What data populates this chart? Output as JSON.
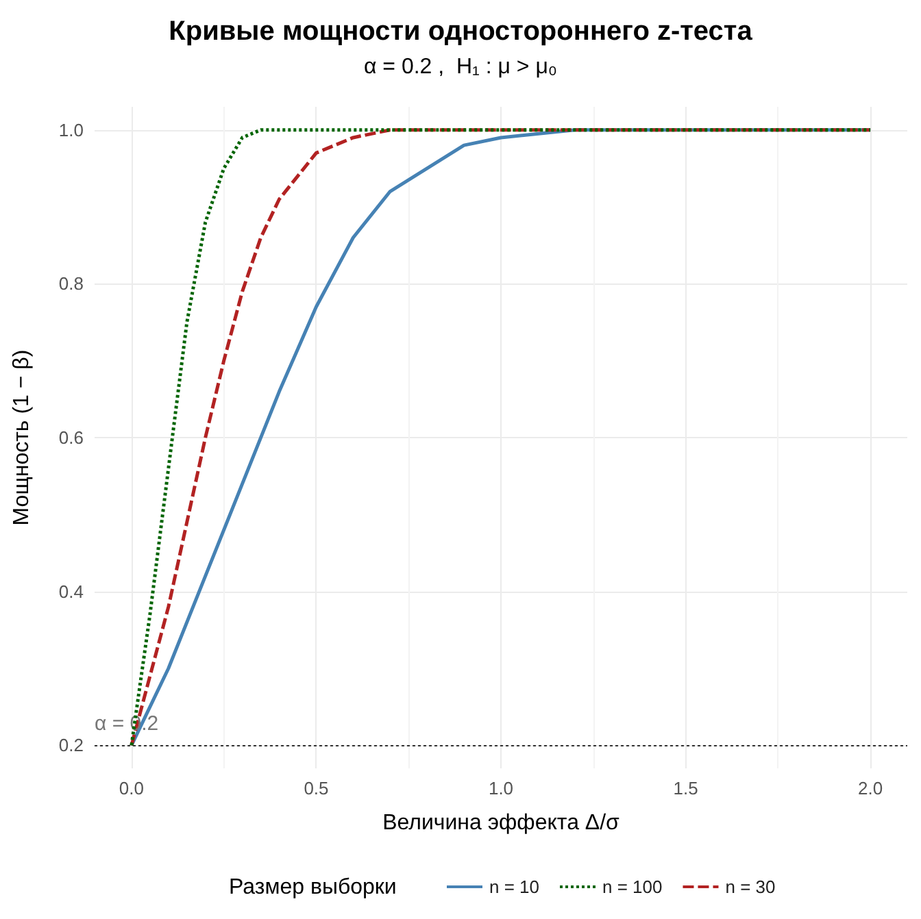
{
  "chart_data": {
    "type": "line",
    "title": "Кривые мощности одностороннего z-теста",
    "subtitle": "α = 0.2 ,  H₁ : μ > μ₀",
    "xlabel": "Величина эффекта Δ/σ",
    "ylabel": "Мощность (1 − β)",
    "legend_title": "Размер выборки",
    "series": [
      {
        "name": "n = 10",
        "color": "#4682b4",
        "line_style": "solid",
        "x": [
          0,
          0.1,
          0.2,
          0.3,
          0.4,
          0.5,
          0.6,
          0.7,
          0.8,
          0.9,
          1.0,
          1.2,
          1.5,
          2.0
        ],
        "values": [
          0.2,
          0.3,
          0.42,
          0.54,
          0.66,
          0.77,
          0.86,
          0.92,
          0.95,
          0.98,
          0.99,
          1.0,
          1.0,
          1.0
        ]
      },
      {
        "name": "n = 100",
        "color": "#006400",
        "line_style": "dotted",
        "x": [
          0,
          0.05,
          0.1,
          0.15,
          0.2,
          0.25,
          0.3,
          0.35,
          0.4,
          0.5,
          2.0
        ],
        "values": [
          0.2,
          0.37,
          0.56,
          0.75,
          0.88,
          0.95,
          0.99,
          1.0,
          1.0,
          1.0,
          1.0
        ]
      },
      {
        "name": "n = 30",
        "color": "#b22222",
        "line_style": "dashed",
        "x": [
          0,
          0.05,
          0.1,
          0.15,
          0.2,
          0.25,
          0.3,
          0.35,
          0.4,
          0.5,
          0.6,
          0.7,
          0.8,
          2.0
        ],
        "values": [
          0.2,
          0.29,
          0.38,
          0.49,
          0.6,
          0.7,
          0.79,
          0.86,
          0.91,
          0.97,
          0.99,
          1.0,
          1.0,
          1.0
        ]
      }
    ],
    "xlim": [
      -0.1,
      2.1
    ],
    "xticks": [
      {
        "value": 0,
        "label": "0.0"
      },
      0.5,
      {
        "value": 1,
        "label": "1.0"
      },
      1.5,
      {
        "value": 2,
        "label": "2.0"
      }
    ],
    "ylim": [
      0.17,
      1.03
    ],
    "yticks": [
      0.2,
      0.4,
      0.6,
      0.8,
      {
        "value": 1,
        "label": "1.0"
      }
    ],
    "ref_lines": [
      {
        "axis": "y",
        "value": 0.2,
        "label": "α = 0.2",
        "color": "#333333",
        "line_style": "dotted"
      }
    ],
    "grid": true,
    "legend": "bottom",
    "marker": "none"
  }
}
